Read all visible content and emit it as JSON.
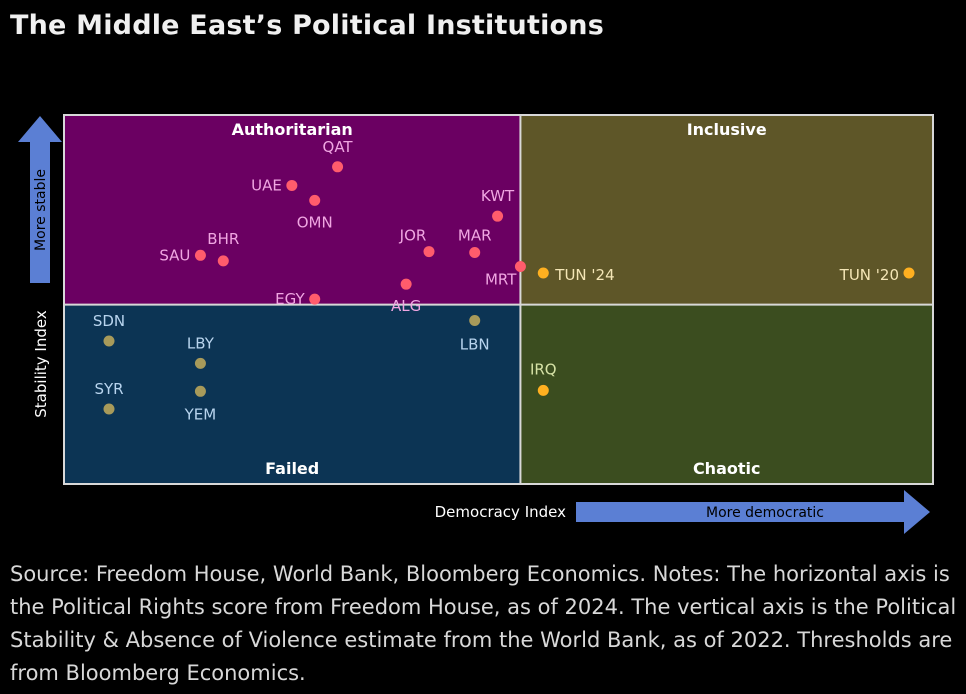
{
  "title": "The Middle East’s Political Institutions",
  "notes": "Source: Freedom House, World Bank, Bloomberg Economics. Notes: The horizontal axis is the Political Rights score from Freedom House, as of 2024. The vertical axis is the Political Stability & Absence of Violence estimate from the World Bank, as of 2022. Thresholds are from Bloomberg Economics.",
  "colors": {
    "authoritarian": "#6b0062",
    "inclusive": "#5e5628",
    "failed": "#0c3454",
    "chaotic": "#3b4d1f",
    "point_red": "#ff5c6c",
    "point_yellow": "#ffb020",
    "point_olive": "#a89a5a",
    "label_pink": "#f0a6e2",
    "label_light": "#f4e6b6",
    "label_blue": "#b8d4ee",
    "label_green": "#d6e2a6",
    "arrow": "#5b7fd4"
  },
  "chart_data": {
    "type": "scatter",
    "title": "The Middle East’s Political Institutions",
    "xlabel": "Democracy Index",
    "ylabel": "Stability Index",
    "x_arrow_label": "More democratic",
    "y_arrow_label": "More stable",
    "xlim": [
      0,
      38
    ],
    "ylim": [
      -3,
      1.5
    ],
    "x_threshold": 20,
    "y_threshold": -0.5,
    "quadrants": {
      "top_left": "Authoritarian",
      "top_right": "Inclusive",
      "bottom_left": "Failed",
      "bottom_right": "Chaotic"
    },
    "points": [
      {
        "label": "QAT",
        "x": 12,
        "y": 0.98,
        "group": "authoritarian"
      },
      {
        "label": "UAE",
        "x": 10,
        "y": 0.78,
        "group": "authoritarian"
      },
      {
        "label": "OMN",
        "x": 11,
        "y": 0.62,
        "group": "authoritarian"
      },
      {
        "label": "KWT",
        "x": 19,
        "y": 0.45,
        "group": "authoritarian"
      },
      {
        "label": "JOR",
        "x": 16,
        "y": 0.07,
        "group": "authoritarian"
      },
      {
        "label": "MAR",
        "x": 18,
        "y": 0.06,
        "group": "authoritarian"
      },
      {
        "label": "BHR",
        "x": 7,
        "y": -0.03,
        "group": "authoritarian"
      },
      {
        "label": "SAU",
        "x": 6,
        "y": 0.03,
        "group": "authoritarian"
      },
      {
        "label": "MRT",
        "x": 20,
        "y": -0.09,
        "group": "authoritarian"
      },
      {
        "label": "ALG",
        "x": 15,
        "y": -0.28,
        "group": "authoritarian"
      },
      {
        "label": "EGY",
        "x": 11,
        "y": -0.44,
        "group": "authoritarian"
      },
      {
        "label": "TUN '24",
        "x": 21,
        "y": -0.16,
        "group": "tunisia"
      },
      {
        "label": "TUN '20",
        "x": 37,
        "y": -0.16,
        "group": "tunisia"
      },
      {
        "label": "LBN",
        "x": 18,
        "y": -0.67,
        "group": "failed"
      },
      {
        "label": "SDN",
        "x": 2,
        "y": -0.89,
        "group": "failed"
      },
      {
        "label": "LBY",
        "x": 6,
        "y": -1.13,
        "group": "failed"
      },
      {
        "label": "YEM",
        "x": 6,
        "y": -1.43,
        "group": "failed"
      },
      {
        "label": "SYR",
        "x": 2,
        "y": -1.62,
        "group": "failed"
      },
      {
        "label": "IRQ",
        "x": 21,
        "y": -1.42,
        "group": "chaotic"
      }
    ]
  }
}
